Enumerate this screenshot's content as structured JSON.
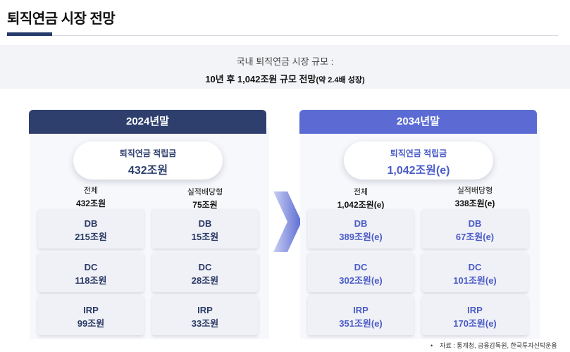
{
  "page_title": "퇴직연금 시장 전망",
  "summary": {
    "label": "국내 퇴직연금 시장 규모 :",
    "headline": "10년 후 1,042조원 규모 전망",
    "paren": "(약 2.4배 성장)"
  },
  "panels": [
    {
      "year": "2024년말",
      "total_label": "퇴직연금 적립금",
      "total_value": "432조원",
      "columns": [
        {
          "head1": "전체",
          "head2": "432조원",
          "cells": [
            {
              "type": "DB",
              "value": "215조원"
            },
            {
              "type": "DC",
              "value": "118조원"
            },
            {
              "type": "IRP",
              "value": "99조원"
            }
          ]
        },
        {
          "head1": "실적배당형",
          "head2": "75조원",
          "cells": [
            {
              "type": "DB",
              "value": "15조원"
            },
            {
              "type": "DC",
              "value": "28조원"
            },
            {
              "type": "IRP",
              "value": "33조원"
            }
          ]
        }
      ]
    },
    {
      "year": "2034년말",
      "total_label": "퇴직연금 적립금",
      "total_value": "1,042조원(e)",
      "columns": [
        {
          "head1": "전체",
          "head2": "1,042조원(e)",
          "cells": [
            {
              "type": "DB",
              "value": "389조원(e)"
            },
            {
              "type": "DC",
              "value": "302조원(e)"
            },
            {
              "type": "IRP",
              "value": "351조원(e)"
            }
          ]
        },
        {
          "head1": "실적배당형",
          "head2": "338조원(e)",
          "cells": [
            {
              "type": "DB",
              "value": "67조원(e)"
            },
            {
              "type": "DC",
              "value": "101조원(e)"
            },
            {
              "type": "IRP",
              "value": "170조원(e)"
            }
          ]
        }
      ]
    }
  ],
  "footnote": {
    "bullet": "•",
    "text": "자료 : 통계청, 금융감독원, 한국투자신탁운용"
  },
  "colors": {
    "dark_navy": "#2e3f6e",
    "accent_blue": "#5b6bd3",
    "cell_bg": "#f0f1f6"
  }
}
